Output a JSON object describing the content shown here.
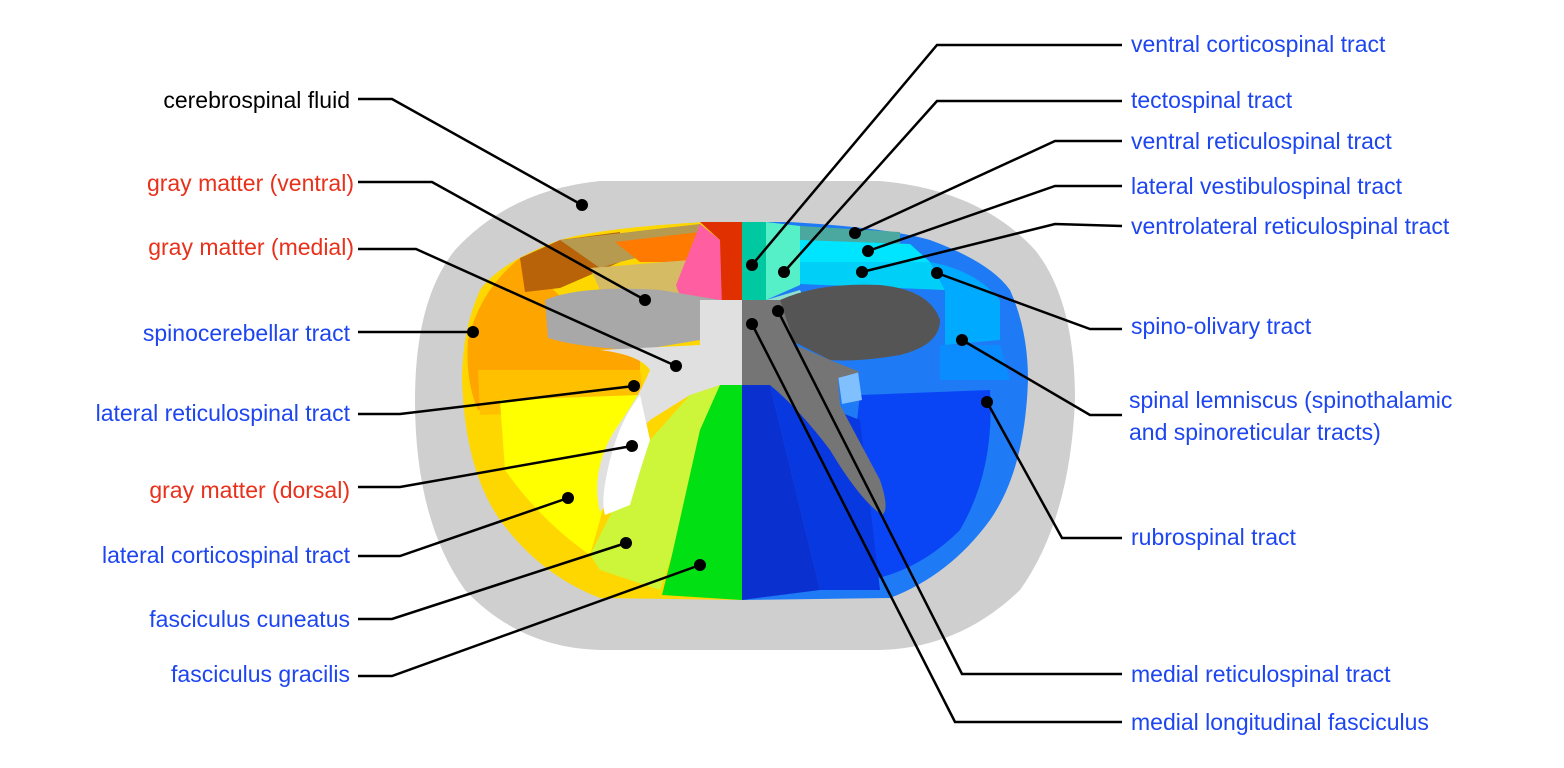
{
  "colors": {
    "black": "#000000",
    "gray_matter_label": "#e8301b",
    "tract_label": "#1d45f0",
    "csf": "#cfcfcf",
    "gray_matter": "#b4b4b4",
    "dot": "#000000"
  },
  "labels": {
    "cerebrospinal_fluid": "cerebrospinal fluid",
    "gray_matter_ventral": "gray matter (ventral)",
    "gray_matter_medial": "gray matter (medial)",
    "spinocerebellar_tract": "spinocerebellar tract",
    "lateral_reticulospinal_tract": "lateral reticulospinal tract",
    "gray_matter_dorsal": "gray matter (dorsal)",
    "lateral_corticospinal_tract": "lateral corticospinal tract",
    "fasciculus_cuneatus": "fasciculus cuneatus",
    "fasciculus_gracilis": "fasciculus gracilis",
    "ventral_corticospinal_tract": "ventral corticospinal tract",
    "tectospinal_tract": "tectospinal tract",
    "ventral_reticulospinal_tract": "ventral reticulospinal tract",
    "lateral_vestibulospinal_tract": "lateral vestibulospinal tract",
    "ventrolateral_reticulospinal_tract": "ventrolateral reticulospinal tract",
    "spino_olivary_tract": "spino-olivary tract",
    "spinal_lemniscus_line1": "spinal lemniscus (spinothalamic",
    "spinal_lemniscus_line2": "and spinoreticular tracts)",
    "rubrospinal_tract": "rubrospinal tract",
    "medial_reticulospinal_tract": "medial reticulospinal tract",
    "medial_longitudinal_fasciculus": "medial longitudinal fasciculus"
  }
}
